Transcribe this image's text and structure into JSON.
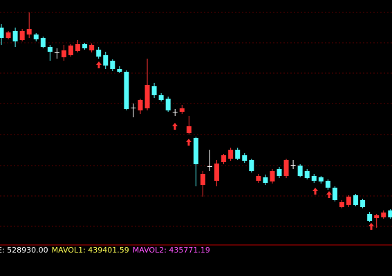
{
  "chart_data": {
    "type": "candlestick",
    "ylim": [
      0,
      350
    ],
    "up_color": "#ff3232",
    "down_color": "#54fcfc",
    "flat_color": "#ffffff",
    "open": [
      310,
      295,
      305,
      292,
      300,
      300,
      295,
      282,
      274,
      267,
      270,
      276,
      286,
      277,
      278,
      270,
      262,
      250,
      246,
      194,
      190,
      193,
      225,
      212,
      207,
      188,
      188,
      157,
      150,
      82,
      109,
      88,
      115,
      120,
      133,
      125,
      118,
      88,
      93,
      87,
      105,
      95,
      111,
      110,
      102,
      95,
      93,
      88,
      78,
      50,
      53,
      67,
      60,
      40,
      34,
      35,
      45
    ],
    "high": [
      315,
      305,
      310,
      308,
      332,
      302,
      297,
      285,
      280,
      285,
      286,
      292,
      288,
      287,
      282,
      275,
      264,
      254,
      248,
      200,
      207,
      265,
      230,
      215,
      210,
      192,
      198,
      182,
      152,
      102,
      133,
      118,
      127,
      136,
      136,
      128,
      120,
      98,
      97,
      105,
      108,
      120,
      118,
      112,
      105,
      98,
      95,
      90,
      80,
      60,
      67,
      69,
      62,
      43,
      40,
      45,
      47
    ],
    "low": [
      285,
      293,
      282,
      290,
      295,
      290,
      280,
      262,
      265,
      262,
      268,
      274,
      278,
      274,
      265,
      250,
      247,
      244,
      190,
      180,
      185,
      190,
      208,
      203,
      188,
      182,
      185,
      155,
      80,
      65,
      102,
      80,
      112,
      117,
      118,
      114,
      100,
      85,
      82,
      84,
      92,
      92,
      105,
      93,
      90,
      85,
      84,
      75,
      58,
      48,
      50,
      51,
      48,
      28,
      20,
      33,
      33
    ],
    "close": [
      295,
      303,
      290,
      305,
      308,
      293,
      282,
      275,
      274,
      277,
      284,
      286,
      280,
      285,
      268,
      255,
      250,
      246,
      192,
      194,
      205,
      227,
      212,
      205,
      190,
      188,
      193,
      167,
      112,
      98,
      109,
      113,
      125,
      133,
      120,
      117,
      102,
      95,
      85,
      102,
      95,
      118,
      111,
      95,
      92,
      88,
      87,
      78,
      60,
      57,
      65,
      53,
      50,
      30,
      38,
      42,
      35
    ],
    "indicators": [
      {
        "label": "E: 528930.00",
        "color": "#ffffff"
      },
      {
        "label": "MAVOL1: 439401.59",
        "color": "#ffff54"
      },
      {
        "label": "MAVOL2: 435771.19",
        "color": "#ff54ff"
      }
    ]
  }
}
